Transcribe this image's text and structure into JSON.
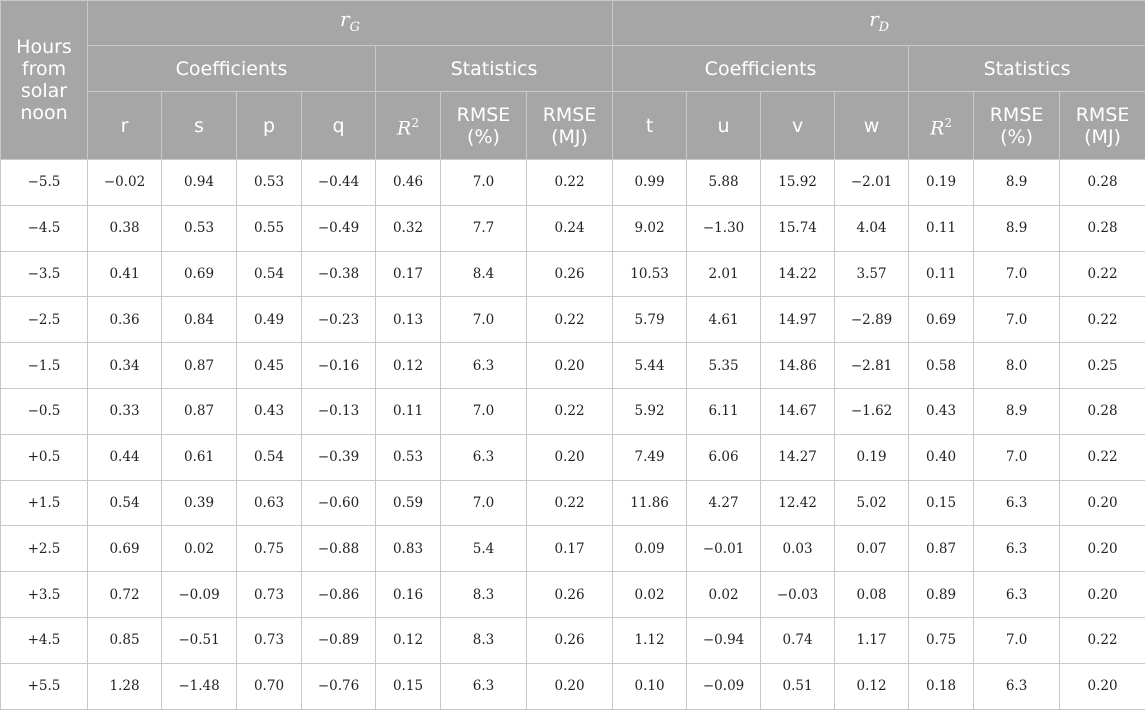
{
  "header": {
    "hours_label": "Hours from solar noon",
    "groups": [
      {
        "symbol": "r",
        "subscript": "G"
      },
      {
        "symbol": "r",
        "subscript": "D"
      }
    ],
    "subgroups": [
      "Coefficients",
      "Statistics",
      "Coefficients",
      "Statistics"
    ],
    "columns": {
      "rG_coeffs": [
        "r",
        "s",
        "p",
        "q"
      ],
      "rD_coeffs": [
        "t",
        "u",
        "v",
        "w"
      ],
      "r2_symbol": "R",
      "r2_exp": "2",
      "rmse_pct": [
        "RMSE",
        "(%)"
      ],
      "rmse_mj": [
        "RMSE",
        "(MJ)"
      ]
    }
  },
  "rows": [
    [
      "−5.5",
      "−0.02",
      "0.94",
      "0.53",
      "−0.44",
      "0.46",
      "7.0",
      "0.22",
      "0.99",
      "5.88",
      "15.92",
      "−2.01",
      "0.19",
      "8.9",
      "0.28"
    ],
    [
      "−4.5",
      "0.38",
      "0.53",
      "0.55",
      "−0.49",
      "0.32",
      "7.7",
      "0.24",
      "9.02",
      "−1.30",
      "15.74",
      "4.04",
      "0.11",
      "8.9",
      "0.28"
    ],
    [
      "−3.5",
      "0.41",
      "0.69",
      "0.54",
      "−0.38",
      "0.17",
      "8.4",
      "0.26",
      "10.53",
      "2.01",
      "14.22",
      "3.57",
      "0.11",
      "7.0",
      "0.22"
    ],
    [
      "−2.5",
      "0.36",
      "0.84",
      "0.49",
      "−0.23",
      "0.13",
      "7.0",
      "0.22",
      "5.79",
      "4.61",
      "14.97",
      "−2.89",
      "0.69",
      "7.0",
      "0.22"
    ],
    [
      "−1.5",
      "0.34",
      "0.87",
      "0.45",
      "−0.16",
      "0.12",
      "6.3",
      "0.20",
      "5.44",
      "5.35",
      "14.86",
      "−2.81",
      "0.58",
      "8.0",
      "0.25"
    ],
    [
      "−0.5",
      "0.33",
      "0.87",
      "0.43",
      "−0.13",
      "0.11",
      "7.0",
      "0.22",
      "5.92",
      "6.11",
      "14.67",
      "−1.62",
      "0.43",
      "8.9",
      "0.28"
    ],
    [
      "+0.5",
      "0.44",
      "0.61",
      "0.54",
      "−0.39",
      "0.53",
      "6.3",
      "0.20",
      "7.49",
      "6.06",
      "14.27",
      "0.19",
      "0.40",
      "7.0",
      "0.22"
    ],
    [
      "+1.5",
      "0.54",
      "0.39",
      "0.63",
      "−0.60",
      "0.59",
      "7.0",
      "0.22",
      "11.86",
      "4.27",
      "12.42",
      "5.02",
      "0.15",
      "6.3",
      "0.20"
    ],
    [
      "+2.5",
      "0.69",
      "0.02",
      "0.75",
      "−0.88",
      "0.83",
      "5.4",
      "0.17",
      "0.09",
      "−0.01",
      "0.03",
      "0.07",
      "0.87",
      "6.3",
      "0.20"
    ],
    [
      "+3.5",
      "0.72",
      "−0.09",
      "0.73",
      "−0.86",
      "0.16",
      "8.3",
      "0.26",
      "0.02",
      "0.02",
      "−0.03",
      "0.08",
      "0.89",
      "6.3",
      "0.20"
    ],
    [
      "+4.5",
      "0.85",
      "−0.51",
      "0.73",
      "−0.89",
      "0.12",
      "8.3",
      "0.26",
      "1.12",
      "−0.94",
      "0.74",
      "1.17",
      "0.75",
      "7.0",
      "0.22"
    ],
    [
      "+5.5",
      "1.28",
      "−1.48",
      "0.70",
      "−0.76",
      "0.15",
      "6.3",
      "0.20",
      "0.10",
      "−0.09",
      "0.51",
      "0.12",
      "0.18",
      "6.3",
      "0.20"
    ]
  ],
  "colors": {
    "header_background": "#a6a6a6",
    "header_text": "#ffffff",
    "grid_line": "#c9c9c9",
    "body_text": "#222222"
  }
}
